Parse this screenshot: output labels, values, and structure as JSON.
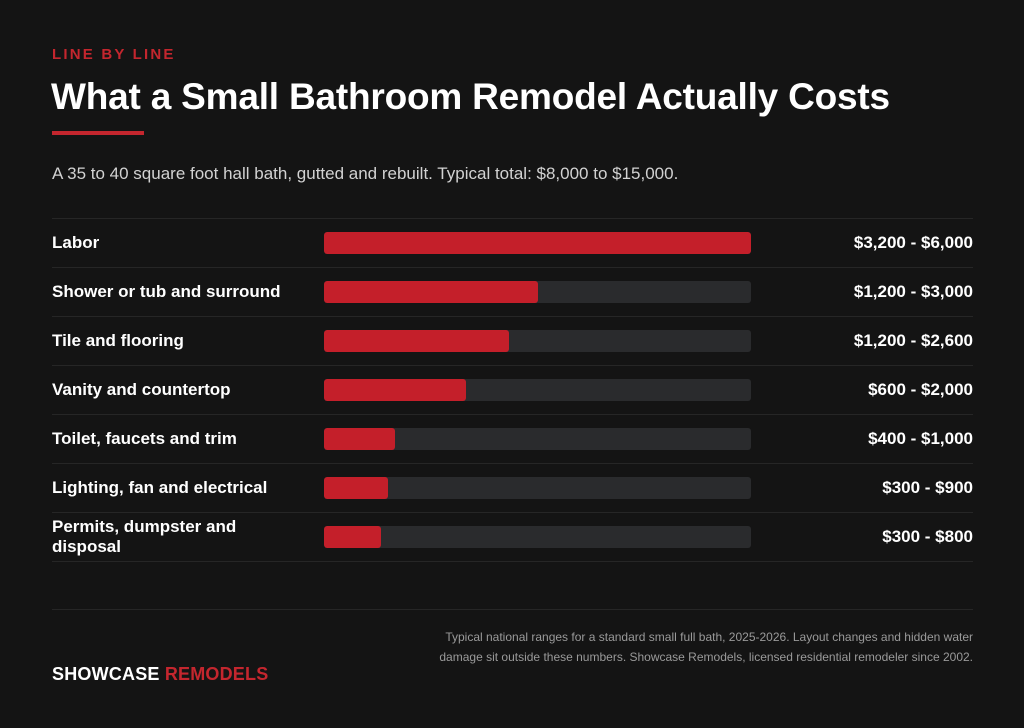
{
  "eyebrow": "LINE BY LINE",
  "title": "What a Small Bathroom Remodel Actually Costs",
  "subtitle": "A 35 to 40 square foot hall bath, gutted and rebuilt. Typical total: $8,000 to $15,000.",
  "colors": {
    "accent": "#c4262e",
    "bar_fill": "#c41f2a",
    "bar_track": "#2a2b2d",
    "background": "#141414"
  },
  "chart_data": {
    "type": "bar",
    "orientation": "horizontal",
    "title": "What a Small Bathroom Remodel Actually Costs",
    "categories": [
      "Labor",
      "Shower or tub and surround",
      "Tile and flooring",
      "Vanity and countertop",
      "Toilet, faucets and trim",
      "Lighting, fan and electrical",
      "Permits, dumpster and disposal"
    ],
    "value_labels": [
      "$3,200 - $6,000",
      "$1,200 - $3,000",
      "$1,200 - $2,600",
      "$600 - $2,000",
      "$400 - $1,000",
      "$300 - $900",
      "$300 - $800"
    ],
    "ranges": [
      [
        3200,
        6000
      ],
      [
        1200,
        3000
      ],
      [
        1200,
        2600
      ],
      [
        600,
        2000
      ],
      [
        400,
        1000
      ],
      [
        300,
        900
      ],
      [
        300,
        800
      ]
    ],
    "values": [
      6000,
      3000,
      2600,
      2000,
      1000,
      900,
      800
    ],
    "xlim": [
      0,
      6000
    ],
    "grid": false,
    "legend": "none"
  },
  "footer": {
    "brand_part1": "SHOWCASE",
    "brand_part2": "REMODELS",
    "note": "Typical national ranges for a standard small full bath, 2025-2026. Layout changes and hidden water damage sit outside these numbers. Showcase Remodels, licensed residential remodeler since 2002."
  }
}
